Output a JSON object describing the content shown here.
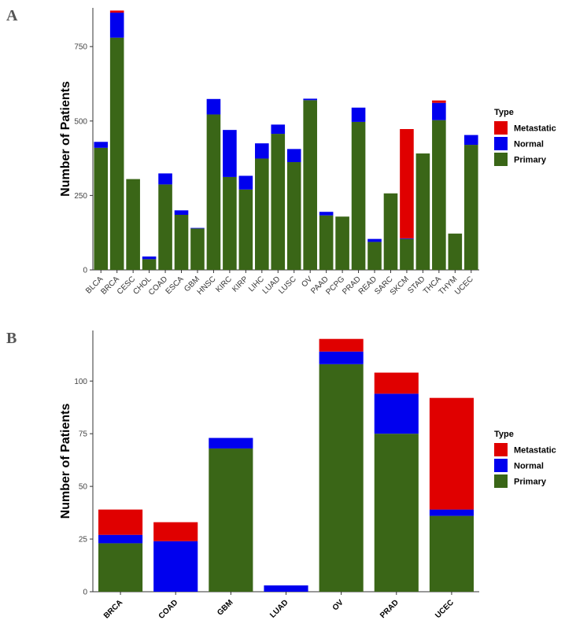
{
  "colors": {
    "Metastatic": "#e00000",
    "Normal": "#0000ee",
    "Primary": "#3a6617"
  },
  "chart_data": [
    {
      "panel": "A",
      "type": "bar",
      "stacked": true,
      "ylabel": "Number of Patients",
      "xlabel": "",
      "ylim": [
        0,
        880
      ],
      "yticks": [
        0,
        250,
        500,
        750
      ],
      "legend": {
        "title": "Type",
        "placement": "right",
        "entries": [
          "Metastatic",
          "Normal",
          "Primary"
        ]
      },
      "categories": [
        "BLCA",
        "BRCA",
        "CESC",
        "CHOL",
        "COAD",
        "ESCA",
        "GBM",
        "HNSC",
        "KIRC",
        "KIRP",
        "LIHC",
        "LUAD",
        "LUSC",
        "OV",
        "PAAD",
        "PCPG",
        "PRAD",
        "READ",
        "SARC",
        "SKCM",
        "STAD",
        "THCA",
        "THYM",
        "UCEC"
      ],
      "series": [
        {
          "name": "Primary",
          "values": [
            410,
            780,
            305,
            36,
            287,
            185,
            139,
            522,
            312,
            270,
            374,
            457,
            362,
            570,
            183,
            179,
            497,
            94,
            257,
            104,
            391,
            503,
            122,
            420
          ]
        },
        {
          "name": "Normal",
          "values": [
            20,
            84,
            0,
            9,
            37,
            15,
            2,
            52,
            158,
            46,
            51,
            31,
            44,
            5,
            12,
            0,
            48,
            10,
            0,
            2,
            0,
            58,
            0,
            33
          ]
        },
        {
          "name": "Metastatic",
          "values": [
            0,
            7,
            0,
            0,
            0,
            0,
            0,
            0,
            0,
            0,
            0,
            0,
            0,
            0,
            0,
            0,
            0,
            0,
            0,
            367,
            0,
            8,
            0,
            0
          ]
        }
      ]
    },
    {
      "panel": "B",
      "type": "bar",
      "stacked": true,
      "ylabel": "Number of Patients",
      "xlabel": "",
      "ylim": [
        0,
        124
      ],
      "yticks": [
        0,
        25,
        50,
        75,
        100
      ],
      "legend": {
        "title": "Type",
        "placement": "right",
        "entries": [
          "Metastatic",
          "Normal",
          "Primary"
        ]
      },
      "categories": [
        "BRCA",
        "COAD",
        "GBM",
        "LUAD",
        "OV",
        "PRAD",
        "UCEC"
      ],
      "series": [
        {
          "name": "Primary",
          "values": [
            23,
            0,
            68,
            0,
            108,
            75,
            36
          ]
        },
        {
          "name": "Normal",
          "values": [
            4,
            24,
            5,
            3,
            6,
            19,
            3
          ]
        },
        {
          "name": "Metastatic",
          "values": [
            12,
            9,
            0,
            0,
            6,
            10,
            53
          ]
        }
      ]
    }
  ]
}
